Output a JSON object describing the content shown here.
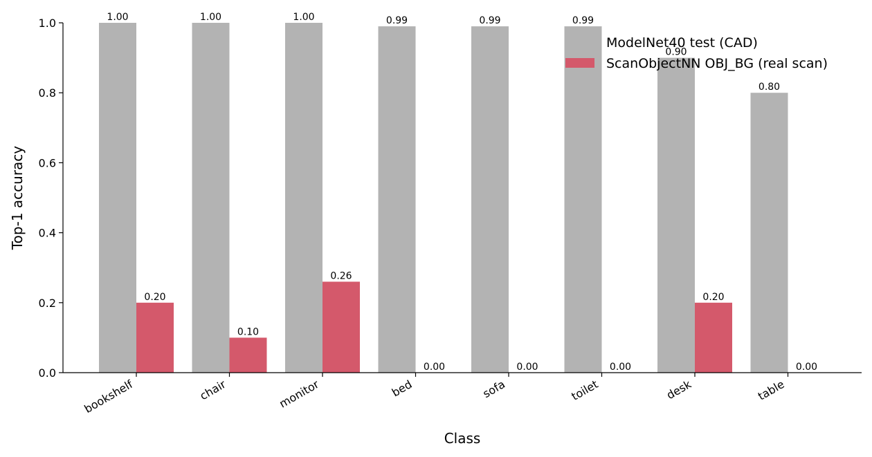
{
  "chart_data": {
    "type": "bar",
    "categories": [
      "bookshelf",
      "chair",
      "monitor",
      "bed",
      "sofa",
      "toilet",
      "desk",
      "table"
    ],
    "series": [
      {
        "name": "ModelNet40 test (CAD)",
        "color": "#b3b3b3",
        "values": [
          1.0,
          1.0,
          1.0,
          0.99,
          0.99,
          0.99,
          0.9,
          0.8
        ],
        "labels": [
          "1.00",
          "1.00",
          "1.00",
          "0.99",
          "0.99",
          "0.99",
          "0.90",
          "0.80"
        ]
      },
      {
        "name": "ScanObjectNN OBJ_BG (real scan)",
        "color": "#d4596b",
        "values": [
          0.2,
          0.1,
          0.26,
          0.0,
          0.0,
          0.0,
          0.2,
          0.0
        ],
        "labels": [
          "0.20",
          "0.10",
          "0.26",
          "0.00",
          "0.00",
          "0.00",
          "0.20",
          "0.00"
        ]
      }
    ],
    "xlabel": "Class",
    "ylabel": "Top-1 accuracy",
    "ylim": [
      0,
      1.0
    ],
    "yticks": [
      "0.0",
      "0.2",
      "0.4",
      "0.6",
      "0.8",
      "1.0"
    ],
    "grid": false,
    "legend": "top-right"
  }
}
